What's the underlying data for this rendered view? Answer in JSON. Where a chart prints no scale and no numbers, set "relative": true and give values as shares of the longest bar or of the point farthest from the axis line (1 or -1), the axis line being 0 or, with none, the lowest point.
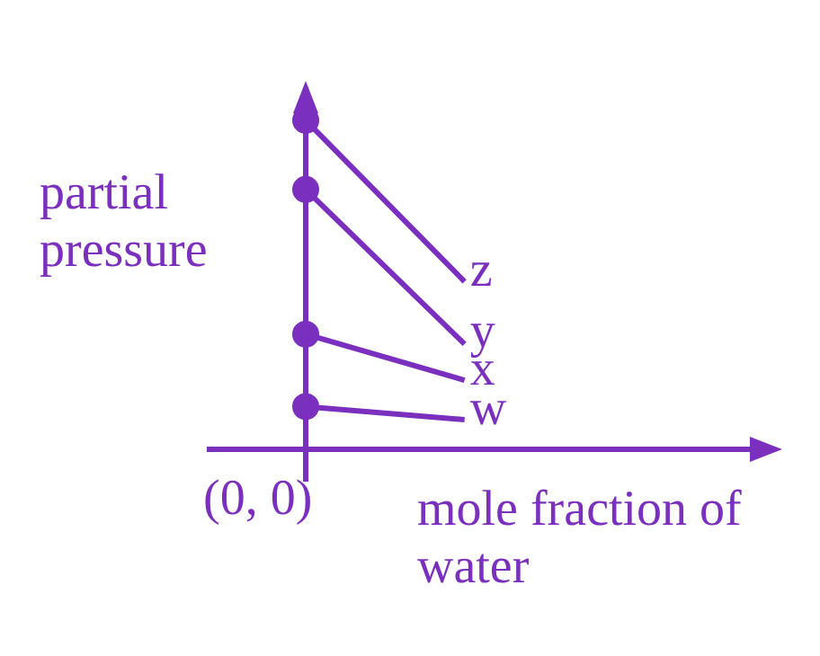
{
  "chart_data": {
    "type": "line",
    "relative": true,
    "xlabel": "mole fraction of water",
    "ylabel": "partial pressure",
    "annotations": [
      "(0, 0)"
    ],
    "categories": [
      null,
      null,
      null,
      null
    ],
    "marker": "circle",
    "line_style": "solid",
    "series": [
      {
        "name": "z",
        "color": "#7b2fbe",
        "values": [
          1,
          0.51,
          null,
          null
        ]
      },
      {
        "name": "y",
        "color": "#7b2fbe",
        "values": [
          0.79,
          0.32,
          null,
          null
        ]
      },
      {
        "name": "x",
        "color": "#7b2fbe",
        "values": [
          0.35,
          0.21,
          null,
          null
        ]
      },
      {
        "name": "w",
        "color": "#7b2fbe",
        "values": [
          0.13,
          0.09,
          null,
          null
        ]
      }
    ]
  }
}
